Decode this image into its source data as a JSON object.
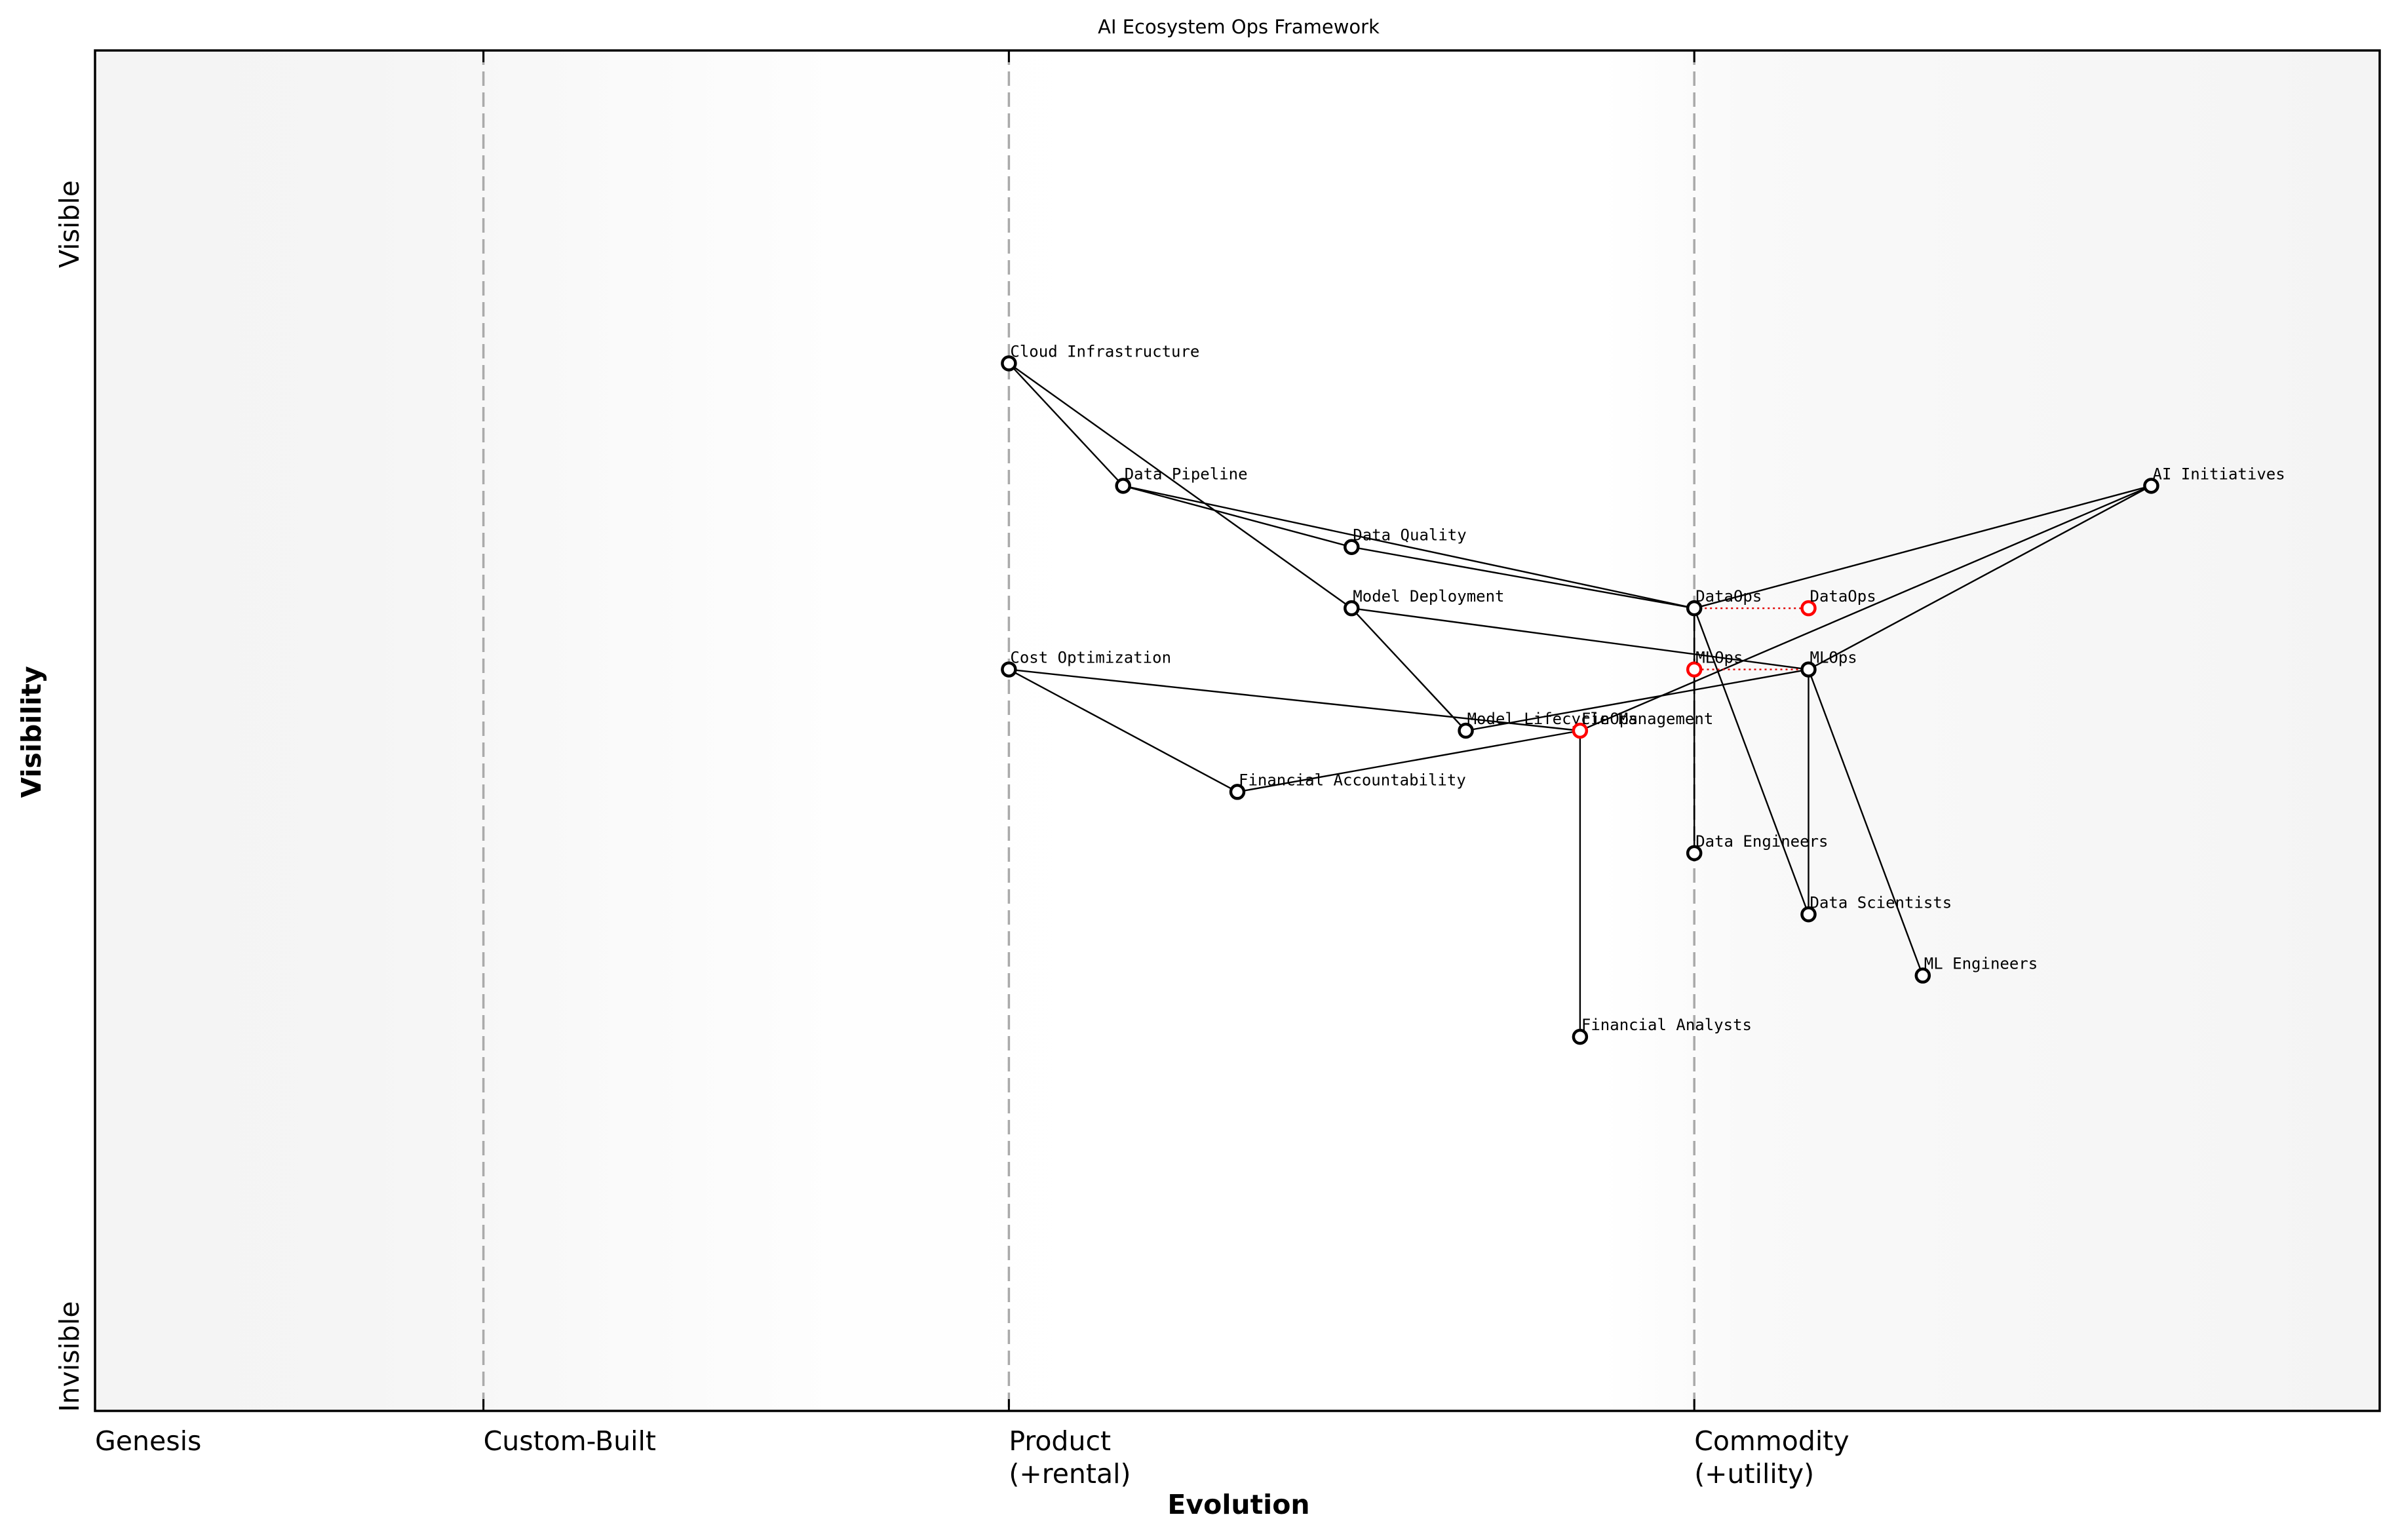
{
  "chart": {
    "title": "AI Ecosystem Ops Framework",
    "x_axis_title": "Evolution",
    "y_axis_title": "Visibility",
    "y_top_label": "Visible",
    "y_bottom_label": "Invisible",
    "stages": [
      {
        "label_line1": "Genesis",
        "label_line2": "",
        "x": 0.0
      },
      {
        "label_line1": "Custom-Built",
        "label_line2": "",
        "x": 0.17
      },
      {
        "label_line1": "Product",
        "label_line2": "(+rental)",
        "x": 0.4
      },
      {
        "label_line1": "Commodity",
        "label_line2": "(+utility)",
        "x": 0.7
      }
    ],
    "colors": {
      "node_stroke": "#000000",
      "evolved_node_stroke": "#ff0000",
      "edge": "#000000",
      "evolution_line": "#e00000",
      "stage_divider": "#aaaaaa",
      "background_edge": "#f5f5f5",
      "background_center": "#ffffff"
    }
  },
  "chart_data": {
    "type": "wardley-map",
    "title": "AI Ecosystem Ops Framework",
    "xlabel": "Evolution",
    "ylabel": "Visibility",
    "xlim": [
      0,
      1
    ],
    "ylim": [
      0,
      1
    ],
    "stage_boundaries": [
      0.17,
      0.4,
      0.7
    ],
    "stage_labels": [
      "Genesis",
      "Custom-Built",
      "Product (+rental)",
      "Commodity (+utility)"
    ],
    "components": [
      {
        "id": "ai_initiatives",
        "name": "AI Initiatives",
        "x": 0.9,
        "y": 0.68
      },
      {
        "id": "cloud_infra",
        "name": "Cloud Infrastructure",
        "x": 0.4,
        "y": 0.77
      },
      {
        "id": "data_pipeline",
        "name": "Data Pipeline",
        "x": 0.45,
        "y": 0.68
      },
      {
        "id": "data_quality",
        "name": "Data Quality",
        "x": 0.55,
        "y": 0.635
      },
      {
        "id": "model_deployment",
        "name": "Model Deployment",
        "x": 0.55,
        "y": 0.59
      },
      {
        "id": "dataops",
        "name": "DataOps",
        "x": 0.7,
        "y": 0.59
      },
      {
        "id": "cost_opt",
        "name": "Cost Optimization",
        "x": 0.4,
        "y": 0.545
      },
      {
        "id": "mlops",
        "name": "MLOps",
        "x": 0.75,
        "y": 0.545
      },
      {
        "id": "model_lifecycle",
        "name": "Model Lifecycle Management",
        "x": 0.6,
        "y": 0.5
      },
      {
        "id": "finops",
        "name": "FinOps",
        "x": 0.65,
        "y": 0.5,
        "evolved": true
      },
      {
        "id": "fin_accountability",
        "name": "Financial Accountability",
        "x": 0.5,
        "y": 0.455
      },
      {
        "id": "data_engineers",
        "name": "Data Engineers",
        "x": 0.7,
        "y": 0.41
      },
      {
        "id": "data_scientists",
        "name": "Data Scientists",
        "x": 0.75,
        "y": 0.365
      },
      {
        "id": "ml_engineers",
        "name": "ML Engineers",
        "x": 0.8,
        "y": 0.32
      },
      {
        "id": "fin_analysts",
        "name": "Financial Analysts",
        "x": 0.65,
        "y": 0.275
      }
    ],
    "evolutions": [
      {
        "name": "DataOps",
        "from_x": 0.7,
        "to_x": 0.75,
        "y": 0.59
      },
      {
        "name": "MLOps",
        "from_x": 0.75,
        "to_x": 0.7,
        "y": 0.545
      }
    ],
    "links": [
      [
        "ai_initiatives",
        "dataops"
      ],
      [
        "ai_initiatives",
        "mlops"
      ],
      [
        "ai_initiatives",
        "finops"
      ],
      [
        "cloud_infra",
        "data_pipeline"
      ],
      [
        "cloud_infra",
        "model_deployment"
      ],
      [
        "data_pipeline",
        "data_quality"
      ],
      [
        "data_pipeline",
        "dataops"
      ],
      [
        "data_quality",
        "dataops"
      ],
      [
        "model_deployment",
        "mlops"
      ],
      [
        "model_deployment",
        "model_lifecycle"
      ],
      [
        "model_lifecycle",
        "mlops"
      ],
      [
        "cost_opt",
        "finops"
      ],
      [
        "cost_opt",
        "fin_accountability"
      ],
      [
        "fin_accountability",
        "finops"
      ],
      [
        "dataops",
        "data_engineers"
      ],
      [
        "dataops",
        "data_scientists"
      ],
      [
        "mlops",
        "data_scientists"
      ],
      [
        "mlops",
        "ml_engineers"
      ],
      [
        "finops",
        "fin_analysts"
      ]
    ]
  }
}
